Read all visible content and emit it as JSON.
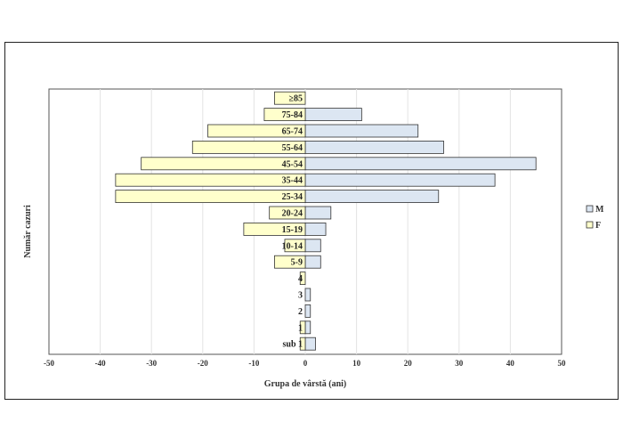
{
  "chart_data": {
    "type": "bar",
    "orientation": "horizontal",
    "categories": [
      "sub 1",
      "1",
      "2",
      "3",
      "4",
      "5-9",
      "10-14",
      "15-19",
      "20-24",
      "25-34",
      "35-44",
      "45-54",
      "55-64",
      "65-74",
      "75-84",
      "≥85"
    ],
    "series": [
      {
        "name": "M",
        "color": "#dce6f2",
        "values": [
          2,
          1,
          1,
          1,
          0,
          3,
          3,
          4,
          5,
          26,
          37,
          45,
          27,
          22,
          11,
          0
        ]
      },
      {
        "name": "F",
        "color": "#ffffcc",
        "values": [
          -1,
          -1,
          0,
          0,
          -1,
          -6,
          -4,
          -12,
          -7,
          -37,
          -37,
          -32,
          -22,
          -19,
          -8,
          -6
        ]
      }
    ],
    "xlim": [
      -50,
      50
    ],
    "xticks": [
      -50,
      -40,
      -30,
      -20,
      -10,
      0,
      10,
      20,
      30,
      40,
      50
    ],
    "xlabel": "Grupa de vârstă (ani)",
    "ylabel": "Număr cazuri",
    "grid": true,
    "legend": "right"
  }
}
